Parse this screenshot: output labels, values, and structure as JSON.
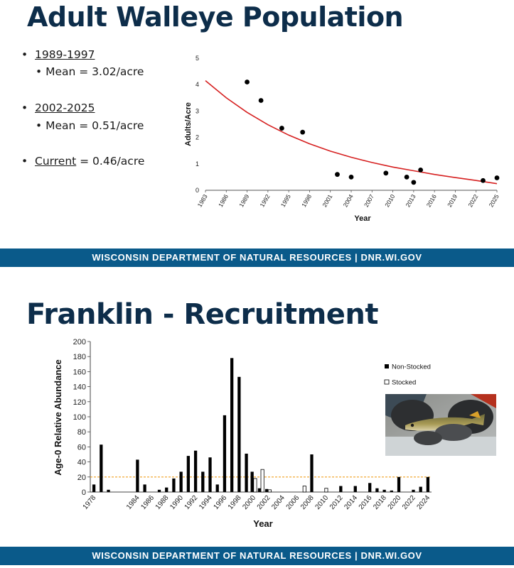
{
  "slide1": {
    "title": "Adult Walleye Population",
    "bullets": [
      {
        "label": "1989-1997",
        "sub": "Mean = 3.02/acre"
      },
      {
        "label": "2002-2025",
        "sub": "Mean = 0.51/acre"
      },
      {
        "label": "Current",
        "rest": " = 0.46/acre"
      }
    ],
    "footer": "WISCONSIN DEPARTMENT OF NATURAL RESOURCES | DNR.WI.GOV"
  },
  "slide2": {
    "title": "Franklin - Recruitment",
    "footer": "WISCONSIN DEPARTMENT OF NATURAL RESOURCES | DNR.WI.GOV",
    "photo_label": "walleye-photo"
  },
  "chart_data": [
    {
      "type": "scatter",
      "title": "",
      "xlabel": "Year",
      "ylabel": "Adults/Acre",
      "xlim": [
        1983,
        2025
      ],
      "ylim": [
        0,
        5
      ],
      "x_ticks": [
        "1983",
        "1986",
        "1989",
        "1992",
        "1995",
        "1998",
        "2001",
        "2004",
        "2007",
        "2010",
        "2013",
        "2016",
        "2019",
        "2022",
        "2025"
      ],
      "y_ticks": [
        "0",
        "1",
        "2",
        "3",
        "4",
        "5"
      ],
      "grid": false,
      "series": [
        {
          "type": "scatter",
          "color": "#000000",
          "points": [
            {
              "x": 1989,
              "y": 4.1
            },
            {
              "x": 1991,
              "y": 3.4
            },
            {
              "x": 1994,
              "y": 2.35
            },
            {
              "x": 1997,
              "y": 2.2
            },
            {
              "x": 2002,
              "y": 0.6
            },
            {
              "x": 2004,
              "y": 0.5
            },
            {
              "x": 2009,
              "y": 0.65
            },
            {
              "x": 2012,
              "y": 0.5
            },
            {
              "x": 2013,
              "y": 0.3
            },
            {
              "x": 2014,
              "y": 0.77
            },
            {
              "x": 2023,
              "y": 0.37
            },
            {
              "x": 2025,
              "y": 0.47
            }
          ]
        },
        {
          "type": "line",
          "color": "#d62020",
          "points": [
            {
              "x": 1983,
              "y": 4.15
            },
            {
              "x": 1986,
              "y": 3.5
            },
            {
              "x": 1989,
              "y": 2.95
            },
            {
              "x": 1992,
              "y": 2.48
            },
            {
              "x": 1995,
              "y": 2.09
            },
            {
              "x": 1998,
              "y": 1.76
            },
            {
              "x": 2001,
              "y": 1.48
            },
            {
              "x": 2004,
              "y": 1.25
            },
            {
              "x": 2007,
              "y": 1.05
            },
            {
              "x": 2010,
              "y": 0.88
            },
            {
              "x": 2013,
              "y": 0.74
            },
            {
              "x": 2016,
              "y": 0.6
            },
            {
              "x": 2019,
              "y": 0.48
            },
            {
              "x": 2022,
              "y": 0.37
            },
            {
              "x": 2025,
              "y": 0.25
            }
          ]
        }
      ]
    },
    {
      "type": "bar",
      "title": "",
      "xlabel": "Year",
      "ylabel": "Age-0 Relative Abundance",
      "ylim": [
        0,
        200
      ],
      "y_ticks": [
        "0",
        "20",
        "40",
        "60",
        "80",
        "100",
        "120",
        "140",
        "160",
        "180",
        "200"
      ],
      "x_tick_labels": [
        "1978",
        "1984",
        "1986",
        "1988",
        "1990",
        "1992",
        "1994",
        "1996",
        "1998",
        "2000",
        "2002",
        "2004",
        "2006",
        "2008",
        "2010",
        "2012",
        "2014",
        "2016",
        "2018",
        "2020",
        "2022",
        "2024"
      ],
      "x_tick_years": [
        1978,
        1984,
        1986,
        1988,
        1990,
        1992,
        1994,
        1996,
        1998,
        2000,
        2002,
        2004,
        2006,
        2008,
        2010,
        2012,
        2014,
        2016,
        2018,
        2020,
        2022,
        2024
      ],
      "year_slots": [
        1978,
        1979,
        1980,
        1981,
        1982,
        1983,
        1984,
        1985,
        1986,
        1987,
        1988,
        1989,
        1990,
        1991,
        1992,
        1993,
        1994,
        1995,
        1996,
        1997,
        1998,
        1999,
        2000,
        2001,
        2002,
        2003,
        2004,
        2005,
        2006,
        2007,
        2008,
        2009,
        2010,
        2011,
        2012,
        2013,
        2014,
        2015,
        2016,
        2017,
        2018,
        2019,
        2020,
        2021,
        2022,
        2023,
        2024
      ],
      "reference_line": {
        "y": 20,
        "color": "#f0a020",
        "style": "dashed"
      },
      "legend": {
        "position": "right",
        "entries": [
          "Non-Stocked",
          "Stocked"
        ]
      },
      "series": [
        {
          "name": "Non-Stocked",
          "color": "#000000",
          "values": [
            {
              "x": 1978,
              "y": 10
            },
            {
              "x": 1979,
              "y": 63
            },
            {
              "x": 1980,
              "y": 3
            },
            {
              "x": 1984,
              "y": 43
            },
            {
              "x": 1985,
              "y": 10
            },
            {
              "x": 1987,
              "y": 3
            },
            {
              "x": 1988,
              "y": 6
            },
            {
              "x": 1989,
              "y": 18
            },
            {
              "x": 1990,
              "y": 27
            },
            {
              "x": 1991,
              "y": 48
            },
            {
              "x": 1992,
              "y": 55
            },
            {
              "x": 1993,
              "y": 27
            },
            {
              "x": 1994,
              "y": 46
            },
            {
              "x": 1995,
              "y": 10
            },
            {
              "x": 1996,
              "y": 102
            },
            {
              "x": 1997,
              "y": 178
            },
            {
              "x": 1998,
              "y": 153
            },
            {
              "x": 1999,
              "y": 51
            },
            {
              "x": 2000,
              "y": 27
            },
            {
              "x": 2001,
              "y": 5
            },
            {
              "x": 2002,
              "y": 4
            },
            {
              "x": 2008,
              "y": 50
            },
            {
              "x": 2012,
              "y": 8
            },
            {
              "x": 2014,
              "y": 8
            },
            {
              "x": 2016,
              "y": 12
            },
            {
              "x": 2017,
              "y": 5
            },
            {
              "x": 2018,
              "y": 3
            },
            {
              "x": 2019,
              "y": 2
            },
            {
              "x": 2020,
              "y": 20
            },
            {
              "x": 2022,
              "y": 3
            },
            {
              "x": 2023,
              "y": 7
            },
            {
              "x": 2024,
              "y": 20
            }
          ]
        },
        {
          "name": "Stocked",
          "color": "#ffffff",
          "values": [
            {
              "x": 2000,
              "y": 18
            },
            {
              "x": 2001,
              "y": 30
            },
            {
              "x": 2002,
              "y": 3
            },
            {
              "x": 2007,
              "y": 8
            },
            {
              "x": 2010,
              "y": 5
            }
          ]
        }
      ]
    }
  ]
}
